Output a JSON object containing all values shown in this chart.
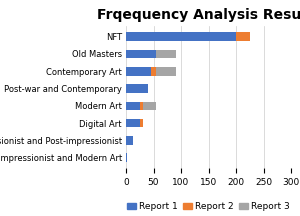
{
  "title": "Frqequency Analysis Results",
  "categories": [
    "NFT",
    "Old Masters",
    "Contemporary Art",
    "Post-war and Contemporary",
    "Modern Art",
    "Digital Art",
    "Impressionist and Post-impressionist",
    "Impressionist and Modern Art"
  ],
  "report1": [
    200,
    55,
    45,
    40,
    25,
    25,
    12,
    2
  ],
  "report2": [
    25,
    0,
    10,
    0,
    5,
    5,
    0,
    0
  ],
  "report3": [
    0,
    35,
    35,
    0,
    25,
    0,
    0,
    0
  ],
  "colors": {
    "report1": "#4472C4",
    "report2": "#ED7D31",
    "report3": "#A5A5A5"
  },
  "xlim": [
    0,
    300
  ],
  "xticks": [
    0,
    50,
    100,
    150,
    200,
    250,
    300
  ],
  "legend_labels": [
    "Report 1",
    "Report 2",
    "Report 3"
  ],
  "background_color": "#FFFFFF",
  "title_fontsize": 10,
  "label_fontsize": 6,
  "tick_fontsize": 6.5,
  "legend_fontsize": 6.5
}
